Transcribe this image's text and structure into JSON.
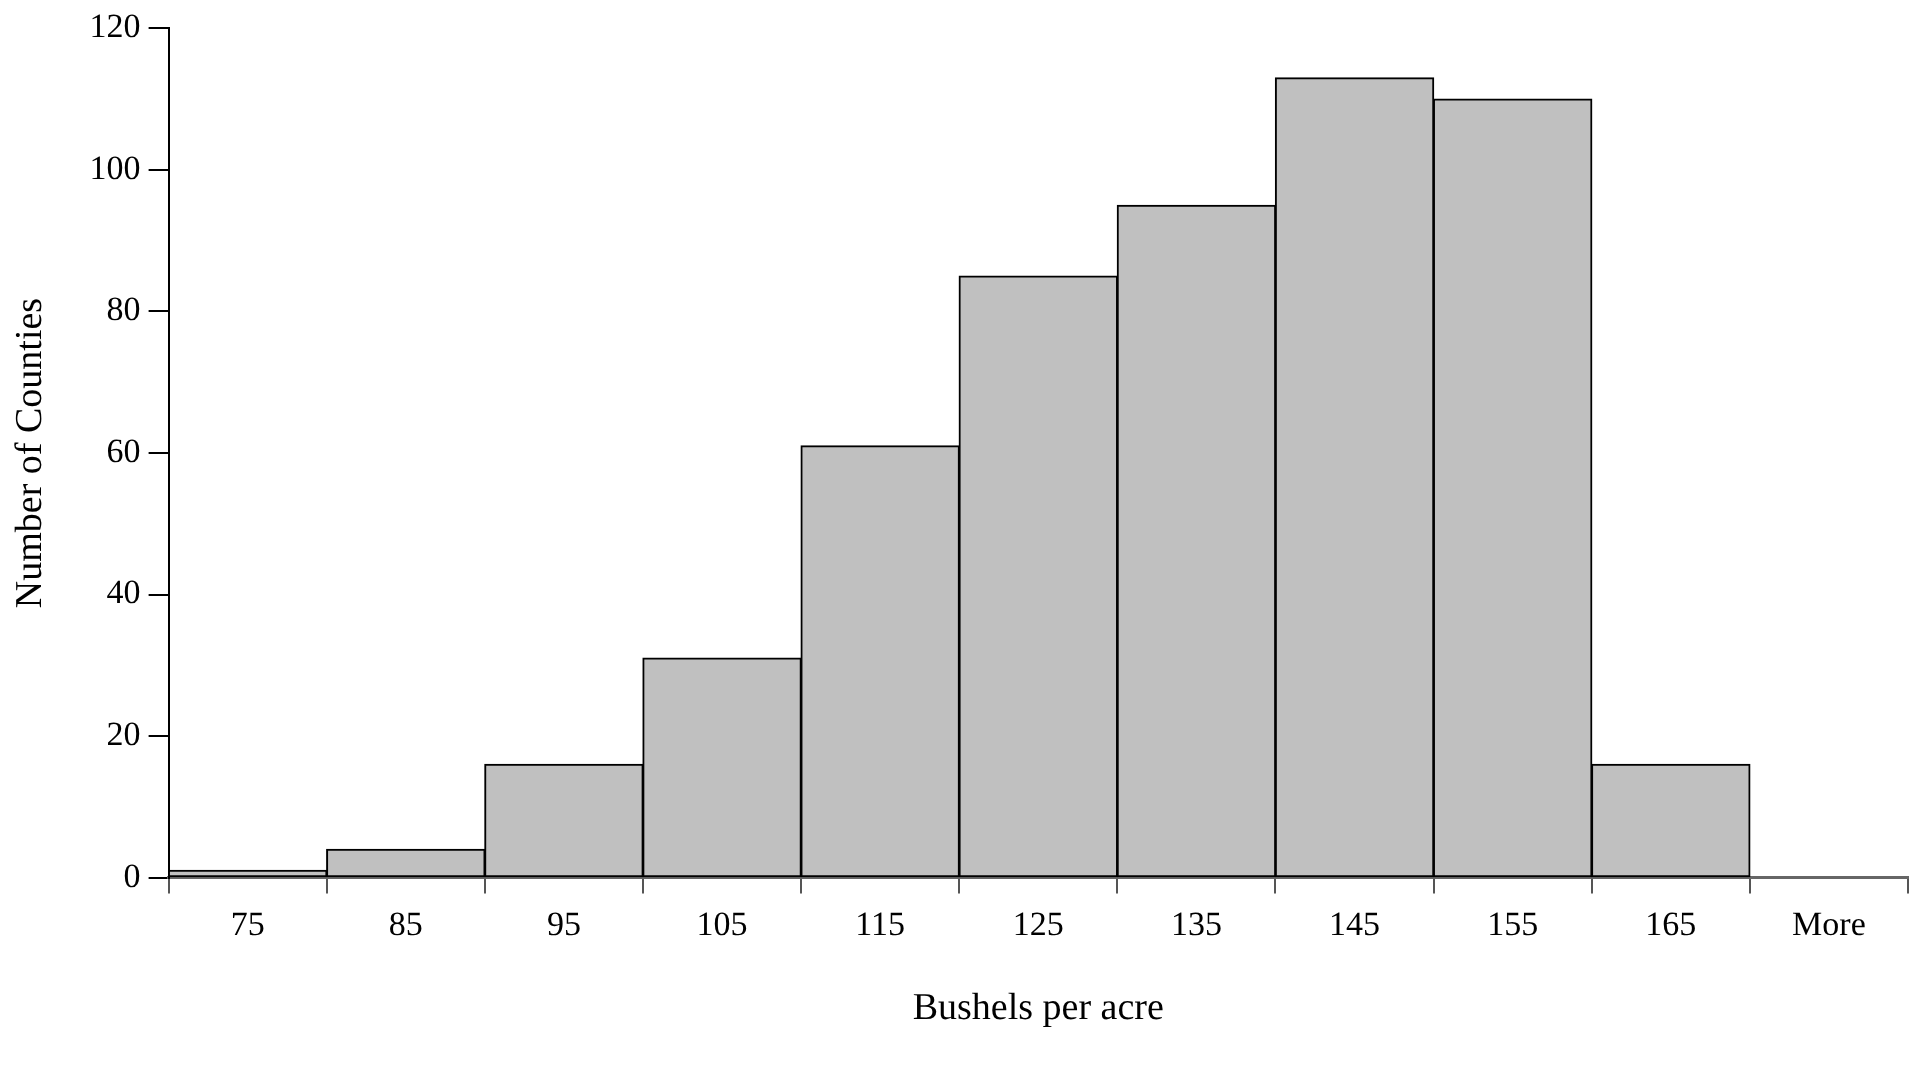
{
  "chart_data": {
    "type": "bar",
    "xlabel": "Bushels per acre",
    "ylabel": "Number of Counties",
    "categories": [
      "75",
      "85",
      "95",
      "105",
      "115",
      "125",
      "135",
      "145",
      "155",
      "165",
      "More"
    ],
    "values": [
      1,
      4,
      16,
      31,
      61,
      85,
      95,
      113,
      110,
      16,
      0
    ],
    "color": "#c0c0c0",
    "ylim": [
      0,
      120
    ],
    "yticks": [
      0,
      20,
      40,
      60,
      80,
      100,
      120
    ],
    "grid": false,
    "legend": false
  }
}
